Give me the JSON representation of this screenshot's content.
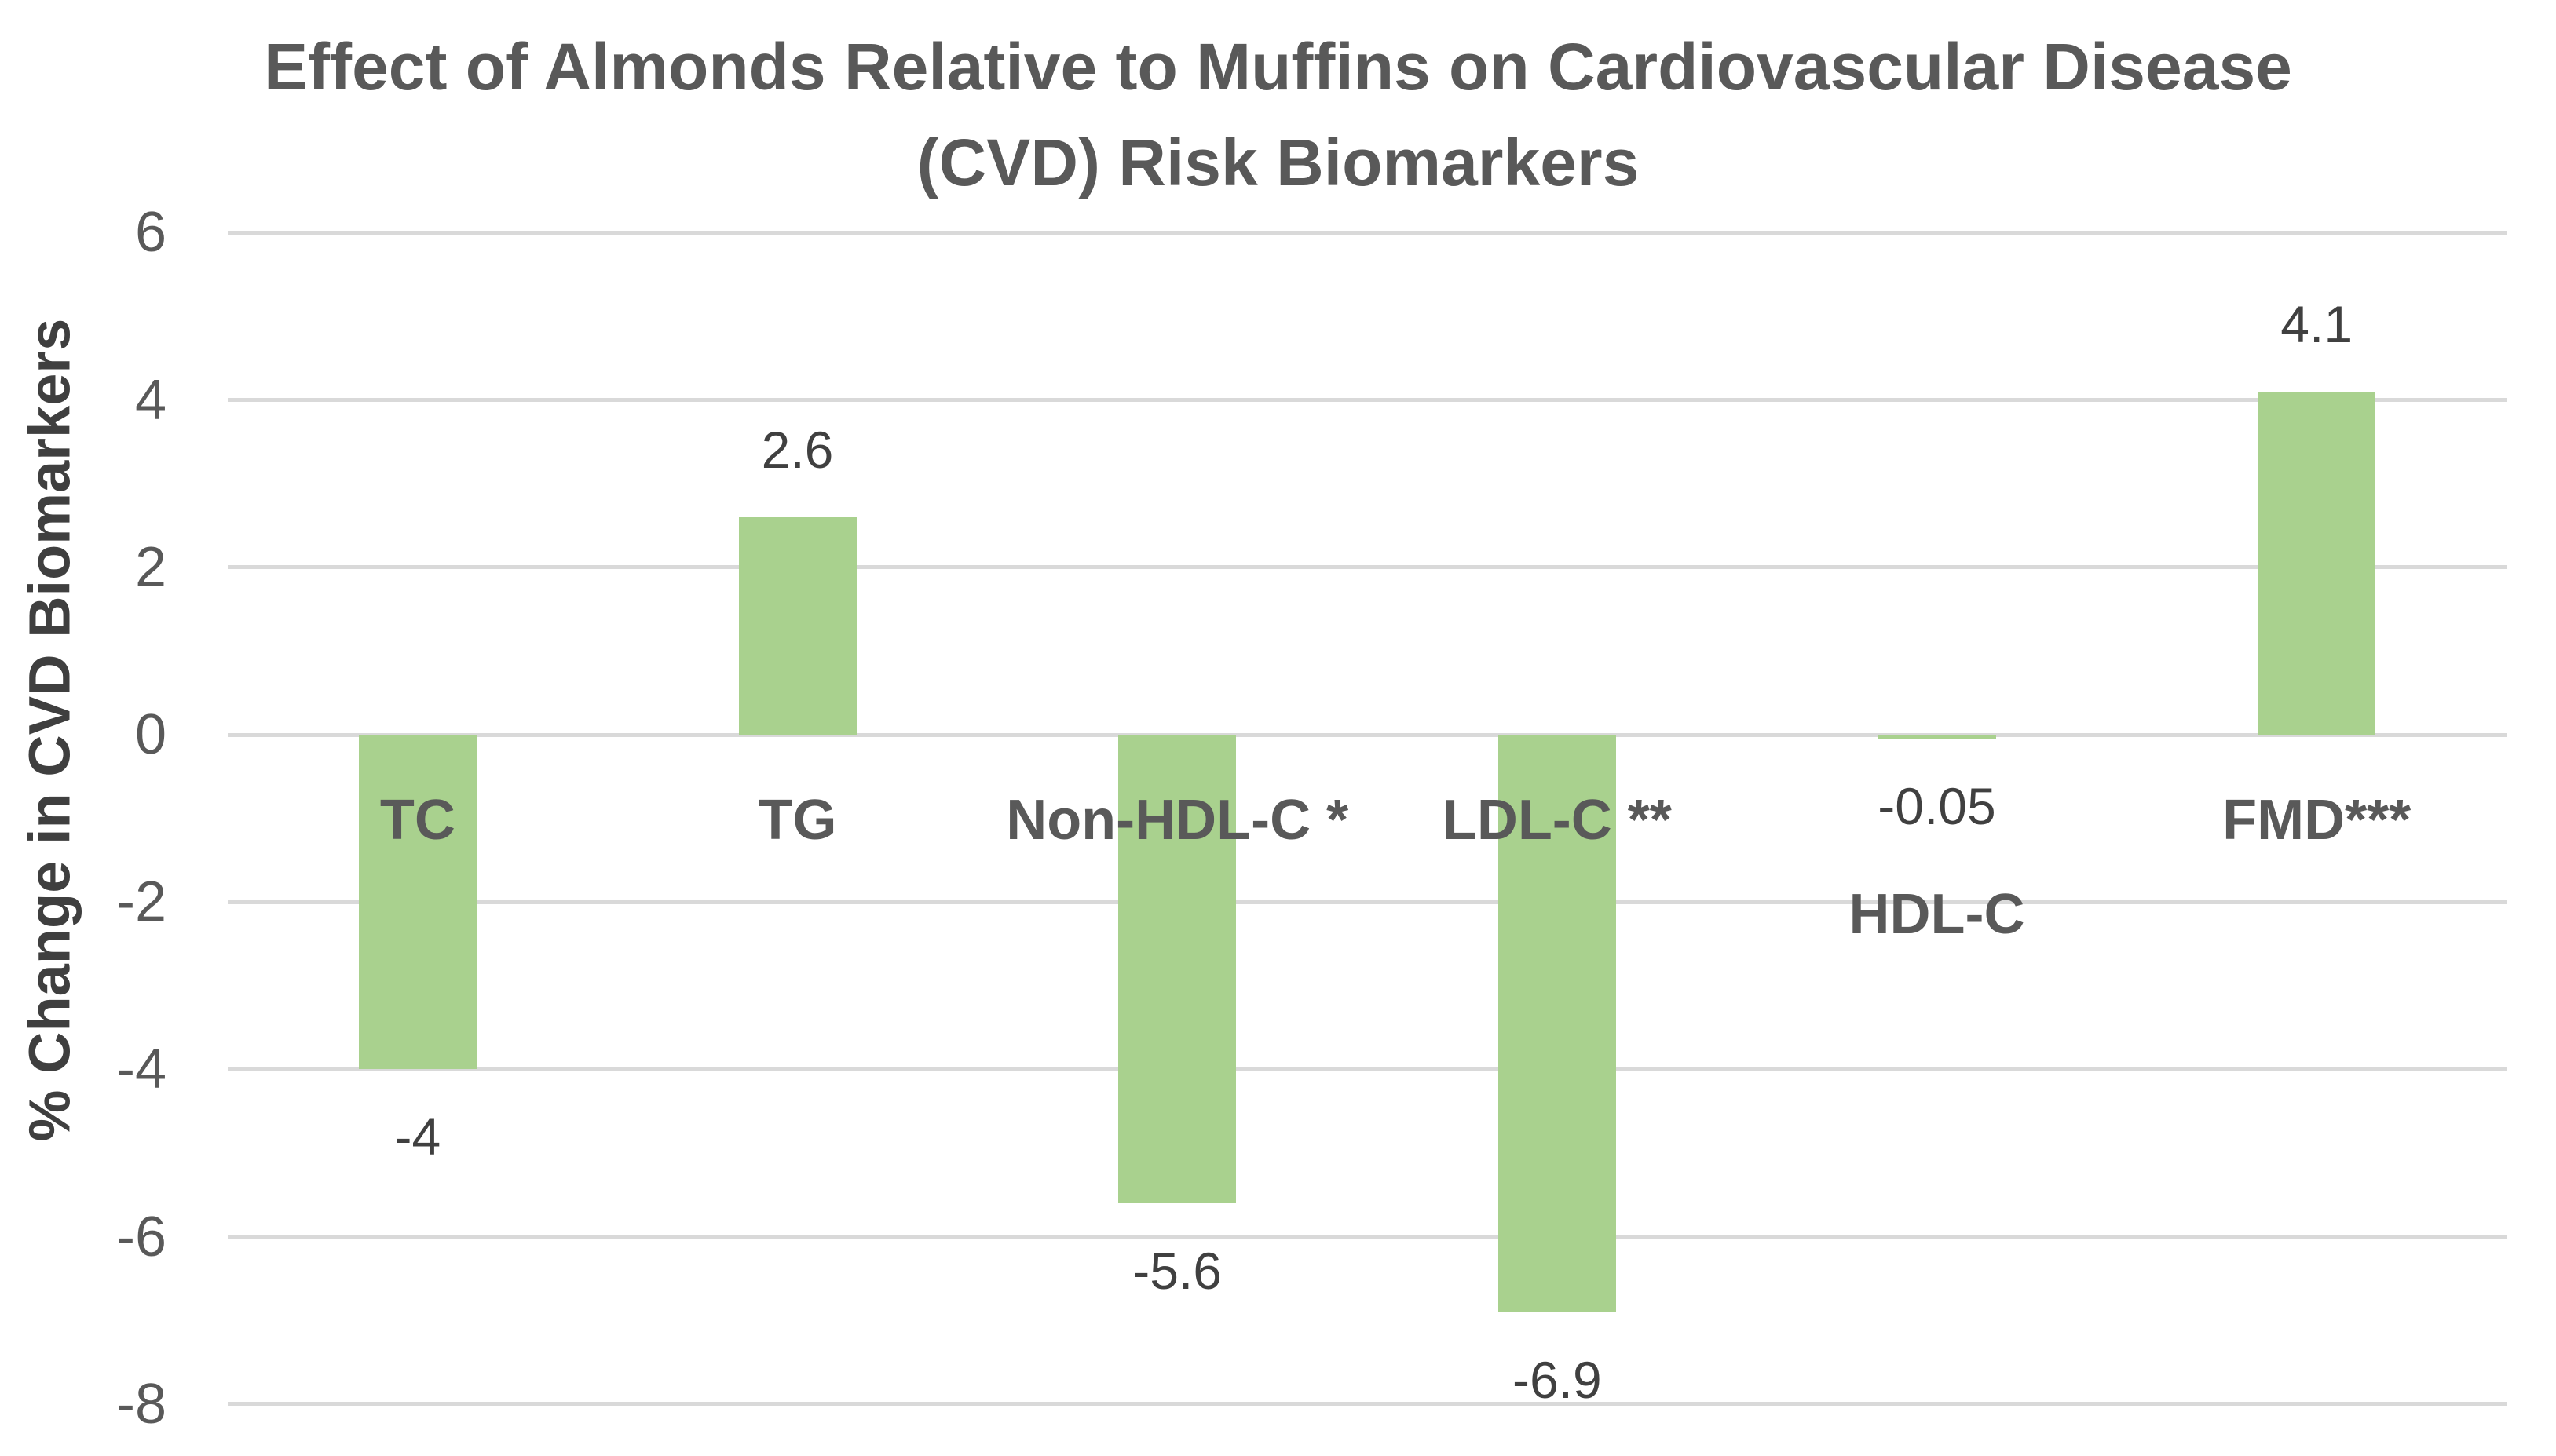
{
  "title": {
    "line1": "Effect of Almonds Relative to Muffins on Cardiovascular Disease",
    "line2": "(CVD) Risk Biomarkers"
  },
  "y_axis": {
    "title": "% Change in CVD Biomarkers"
  },
  "chart_data": {
    "type": "bar",
    "title": "Effect of Almonds Relative to Muffins on Cardiovascular Disease (CVD) Risk Biomarkers",
    "xlabel": "",
    "ylabel": "% Change in CVD Biomarkers",
    "ylim": [
      -8,
      6
    ],
    "grid": true,
    "gridline_values": [
      6,
      4,
      2,
      0,
      -2,
      -4,
      -6,
      -8
    ],
    "tick_labels": [
      "6",
      "4",
      "2",
      "0",
      "-2",
      "-4",
      "-6",
      "-8"
    ],
    "legend": "none",
    "categories": [
      "TC",
      "TG",
      "Non-HDL-C *",
      "LDL-C **",
      "HDL-C",
      "FMD***"
    ],
    "values": [
      -4,
      2.6,
      -5.6,
      -6.9,
      -0.05,
      4.1
    ],
    "value_labels": [
      "-4",
      "2.6",
      "-5.6",
      "-6.9",
      "-0.05",
      "4.1"
    ],
    "category_label_position": [
      "normal",
      "normal",
      "normal",
      "normal",
      "low",
      "normal"
    ]
  },
  "colors": {
    "bar_fill": "#a9d18e",
    "gridline": "#d9d9d9",
    "title_text": "#595959",
    "tick_text": "#595959",
    "category_text": "#595959",
    "value_text": "#404040",
    "axis_title_text": "#3f3f3f",
    "background": "#ffffff"
  }
}
